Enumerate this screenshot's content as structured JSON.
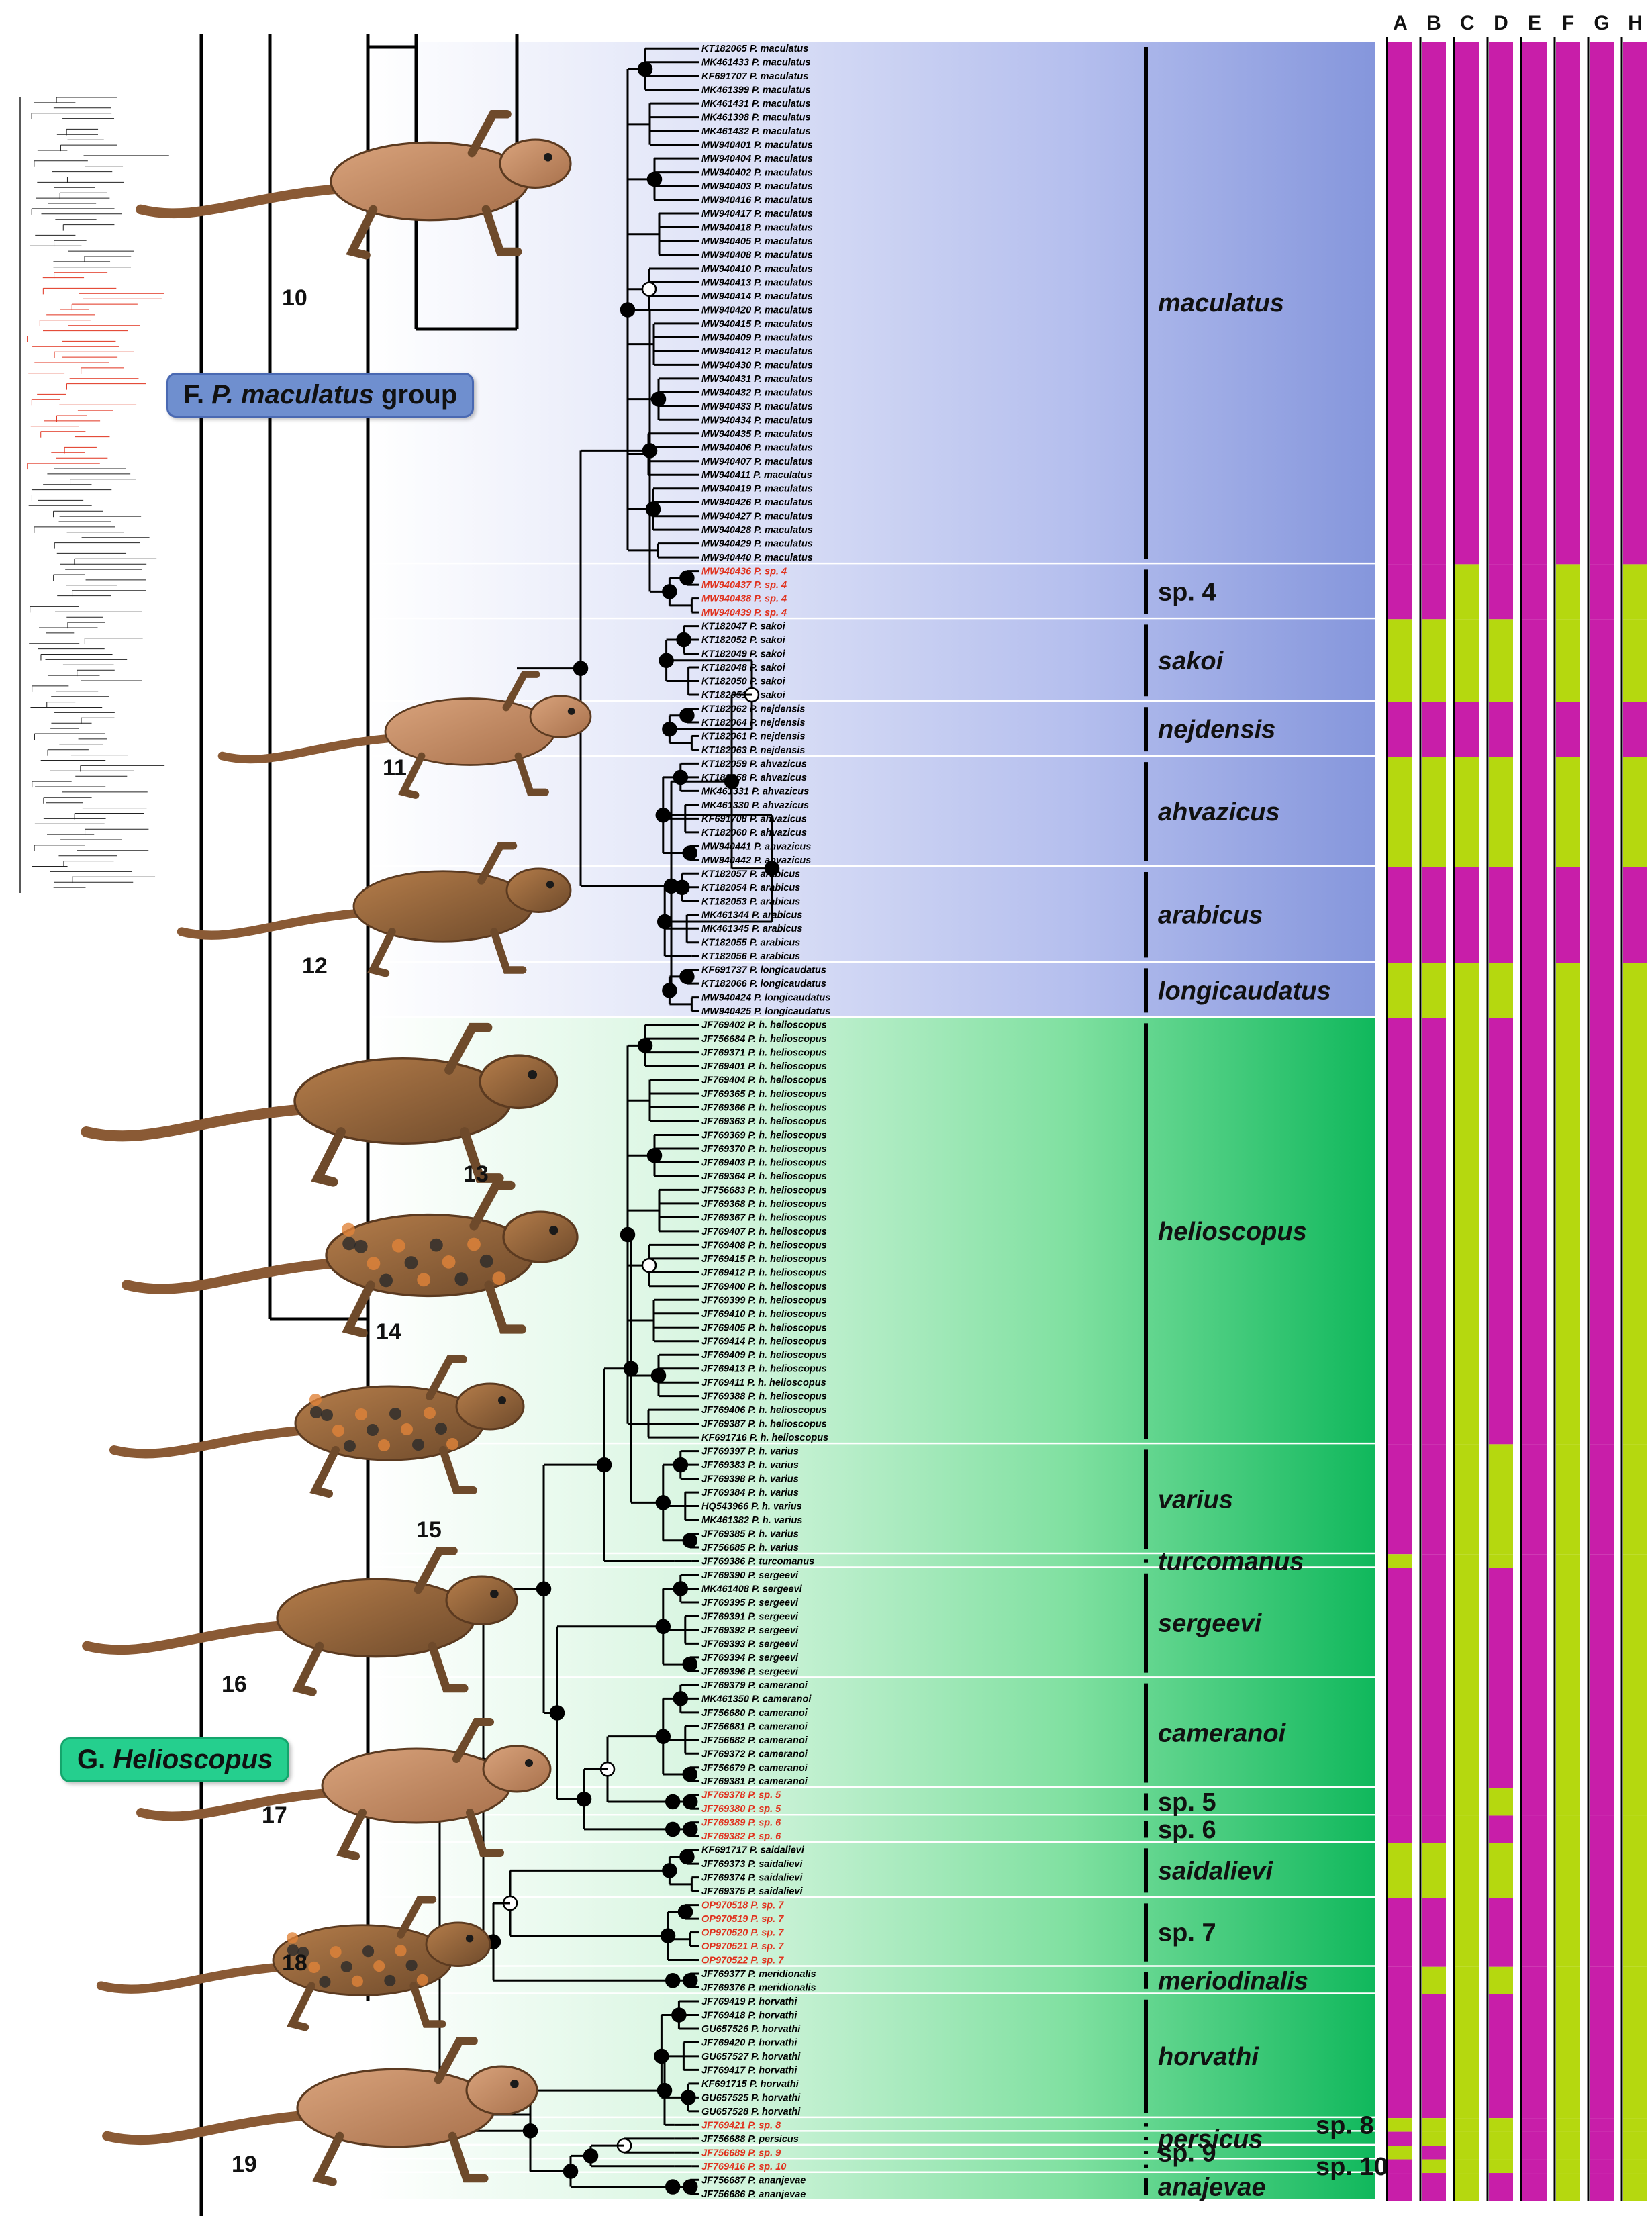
{
  "groups": {
    "F": {
      "prefix": "F.",
      "genus": "P. maculatus",
      "suffix": "group"
    },
    "G": {
      "prefix": "G.",
      "genus": "Helioscopus"
    }
  },
  "columns": [
    "A",
    "B",
    "C",
    "D",
    "E",
    "F",
    "G",
    "H"
  ],
  "photo_labels": [
    "10",
    "11",
    "12",
    "13",
    "14",
    "15",
    "16",
    "17",
    "18",
    "19"
  ],
  "colors": {
    "magenta": "#c81ea9",
    "lime": "#b5d80f",
    "blue_band": "#8596dc",
    "green_band": "#10b85c",
    "red_tip": "#e0321e"
  },
  "clades": [
    {
      "name": "maculatus",
      "type": "latin",
      "band": "blue",
      "states": "MMMMMMMM",
      "tips": [
        [
          "KT182065",
          "P. maculatus"
        ],
        [
          "MK461433",
          "P. maculatus"
        ],
        [
          "KF691707",
          "P. maculatus"
        ],
        [
          "MK461399",
          "P. maculatus"
        ],
        [
          "MK461431",
          "P. maculatus"
        ],
        [
          "MK461398",
          "P. maculatus"
        ],
        [
          "MK461432",
          "P. maculatus"
        ],
        [
          "MW940401",
          "P. maculatus"
        ],
        [
          "MW940404",
          "P. maculatus"
        ],
        [
          "MW940402",
          "P. maculatus"
        ],
        [
          "MW940403",
          "P. maculatus"
        ],
        [
          "MW940416",
          "P. maculatus"
        ],
        [
          "MW940417",
          "P. maculatus"
        ],
        [
          "MW940418",
          "P. maculatus"
        ],
        [
          "MW940405",
          "P. maculatus"
        ],
        [
          "MW940408",
          "P. maculatus"
        ],
        [
          "MW940410",
          "P. maculatus"
        ],
        [
          "MW940413",
          "P. maculatus"
        ],
        [
          "MW940414",
          "P. maculatus"
        ],
        [
          "MW940420",
          "P. maculatus"
        ],
        [
          "MW940415",
          "P. maculatus"
        ],
        [
          "MW940409",
          "P. maculatus"
        ],
        [
          "MW940412",
          "P. maculatus"
        ],
        [
          "MW940430",
          "P. maculatus"
        ],
        [
          "MW940431",
          "P. maculatus"
        ],
        [
          "MW940432",
          "P. maculatus"
        ],
        [
          "MW940433",
          "P. maculatus"
        ],
        [
          "MW940434",
          "P. maculatus"
        ],
        [
          "MW940435",
          "P. maculatus"
        ],
        [
          "MW940406",
          "P. maculatus"
        ],
        [
          "MW940407",
          "P. maculatus"
        ],
        [
          "MW940411",
          "P. maculatus"
        ],
        [
          "MW940419",
          "P. maculatus"
        ],
        [
          "MW940426",
          "P. maculatus"
        ],
        [
          "MW940427",
          "P. maculatus"
        ],
        [
          "MW940428",
          "P. maculatus"
        ],
        [
          "MW940429",
          "P. maculatus"
        ],
        [
          "MW940440",
          "P. maculatus"
        ]
      ]
    },
    {
      "name": "sp. 4",
      "type": "sp",
      "band": "blue",
      "states": "MMLMMLML",
      "red": true,
      "tips": [
        [
          "MW940436",
          "P. sp. 4"
        ],
        [
          "MW940437",
          "P. sp. 4"
        ],
        [
          "MW940438",
          "P. sp. 4"
        ],
        [
          "MW940439",
          "P. sp. 4"
        ]
      ]
    },
    {
      "name": "sakoi",
      "type": "latin",
      "band": "blue",
      "states": "LLLLMLML",
      "tips": [
        [
          "KT182047",
          "P. sakoi"
        ],
        [
          "KT182052",
          "P. sakoi"
        ],
        [
          "KT182049",
          "P. sakoi"
        ],
        [
          "KT182048",
          "P. sakoi"
        ],
        [
          "KT182050",
          "P. sakoi"
        ],
        [
          "KT182051",
          "P. sakoi"
        ]
      ]
    },
    {
      "name": "nejdensis",
      "type": "latin",
      "band": "blue",
      "states": "MMMMMMMM",
      "tips": [
        [
          "KT182062",
          "P. nejdensis"
        ],
        [
          "KT182064",
          "P. nejdensis"
        ],
        [
          "KT182061",
          "P. nejdensis"
        ],
        [
          "KT182063",
          "P. nejdensis"
        ]
      ]
    },
    {
      "name": "ahvazicus",
      "type": "latin",
      "band": "blue",
      "states": "LLLLMLML",
      "tips": [
        [
          "KT182059",
          "P. ahvazicus"
        ],
        [
          "KT182058",
          "P. ahvazicus"
        ],
        [
          "MK461331",
          "P. ahvazicus"
        ],
        [
          "MK461330",
          "P. ahvazicus"
        ],
        [
          "KF691708",
          "P. ahvazicus"
        ],
        [
          "KT182060",
          "P. ahvazicus"
        ],
        [
          "MW940441",
          "P. ahvazicus"
        ],
        [
          "MW940442",
          "P. ahvazicus"
        ]
      ]
    },
    {
      "name": "arabicus",
      "type": "latin",
      "band": "blue",
      "states": "MMMMMMMM",
      "tips": [
        [
          "KT182057",
          "P. arabicus"
        ],
        [
          "KT182054",
          "P. arabicus"
        ],
        [
          "KT182053",
          "P. arabicus"
        ],
        [
          "MK461344",
          "P. arabicus"
        ],
        [
          "MK461345",
          "P. arabicus"
        ],
        [
          "KT182055",
          "P. arabicus"
        ],
        [
          "KT182056",
          "P. arabicus"
        ]
      ]
    },
    {
      "name": "longicaudatus",
      "type": "latin",
      "band": "blue",
      "states": "LLLLMLML",
      "tips": [
        [
          "KF691737",
          "P. longicaudatus"
        ],
        [
          "KT182066",
          "P. longicaudatus"
        ],
        [
          "MW940424",
          "P. longicaudatus"
        ],
        [
          "MW940425",
          "P. longicaudatus"
        ]
      ]
    },
    {
      "name": "helioscopus",
      "type": "latin",
      "band": "green",
      "states": "MMLMMLML",
      "tips": [
        [
          "JF769402",
          "P. h. helioscopus"
        ],
        [
          "JF756684",
          "P. h. helioscopus"
        ],
        [
          "JF769371",
          "P. h. helioscopus"
        ],
        [
          "JF769401",
          "P. h. helioscopus"
        ],
        [
          "JF769404",
          "P. h. helioscopus"
        ],
        [
          "JF769365",
          "P. h. helioscopus"
        ],
        [
          "JF769366",
          "P. h. helioscopus"
        ],
        [
          "JF769363",
          "P. h. helioscopus"
        ],
        [
          "JF769369",
          "P. h. helioscopus"
        ],
        [
          "JF769370",
          "P. h. helioscopus"
        ],
        [
          "JF769403",
          "P. h. helioscopus"
        ],
        [
          "JF769364",
          "P. h. helioscopus"
        ],
        [
          "JF756683",
          "P. h. helioscopus"
        ],
        [
          "JF769368",
          "P. h. helioscopus"
        ],
        [
          "JF769367",
          "P. h. helioscopus"
        ],
        [
          "JF769407",
          "P. h. helioscopus"
        ],
        [
          "JF769408",
          "P. h. helioscopus"
        ],
        [
          "JF769415",
          "P. h. helioscopus"
        ],
        [
          "JF769412",
          "P. h. helioscopus"
        ],
        [
          "JF769400",
          "P. h. helioscopus"
        ],
        [
          "JF769399",
          "P. h. helioscopus"
        ],
        [
          "JF769410",
          "P. h. helioscopus"
        ],
        [
          "JF769405",
          "P. h. helioscopus"
        ],
        [
          "JF769414",
          "P. h. helioscopus"
        ],
        [
          "JF769409",
          "P. h. helioscopus"
        ],
        [
          "JF769413",
          "P. h. helioscopus"
        ],
        [
          "JF769411",
          "P. h. helioscopus"
        ],
        [
          "JF769388",
          "P. h. helioscopus"
        ],
        [
          "JF769406",
          "P. h. helioscopus"
        ],
        [
          "JF769387",
          "P. h. helioscopus"
        ],
        [
          "KF691716",
          "P. h. helioscopus"
        ]
      ]
    },
    {
      "name": "varius",
      "type": "latin",
      "band": "green",
      "states": "MMLLMLML",
      "tips": [
        [
          "JF769397",
          "P. h. varius"
        ],
        [
          "JF769383",
          "P. h. varius"
        ],
        [
          "JF769398",
          "P. h. varius"
        ],
        [
          "JF769384",
          "P. h. varius"
        ],
        [
          "HQ543966",
          "P. h. varius"
        ],
        [
          "MK461382",
          "P. h. varius"
        ],
        [
          "JF769385",
          "P. h. varius"
        ],
        [
          "JF756685",
          "P. h. varius"
        ]
      ]
    },
    {
      "name": "turcomanus",
      "type": "latin",
      "band": "green",
      "states": "LMLLMLML",
      "tips": [
        [
          "JF769386",
          "P. turcomanus"
        ]
      ]
    },
    {
      "name": "sergeevi",
      "type": "latin",
      "band": "green",
      "states": "MMLMMLML",
      "tips": [
        [
          "JF769390",
          "P. sergeevi"
        ],
        [
          "MK461408",
          "P. sergeevi"
        ],
        [
          "JF769395",
          "P. sergeevi"
        ],
        [
          "JF769391",
          "P. sergeevi"
        ],
        [
          "JF769392",
          "P. sergeevi"
        ],
        [
          "JF769393",
          "P. sergeevi"
        ],
        [
          "JF769394",
          "P. sergeevi"
        ],
        [
          "JF769396",
          "P. sergeevi"
        ]
      ]
    },
    {
      "name": "cameranoi",
      "type": "latin",
      "band": "green",
      "states": "MMLMMLML",
      "tips": [
        [
          "JF769379",
          "P. cameranoi"
        ],
        [
          "MK461350",
          "P. cameranoi"
        ],
        [
          "JF756680",
          "P. cameranoi"
        ],
        [
          "JF756681",
          "P. cameranoi"
        ],
        [
          "JF756682",
          "P. cameranoi"
        ],
        [
          "JF769372",
          "P. cameranoi"
        ],
        [
          "JF756679",
          "P. cameranoi"
        ],
        [
          "JF769381",
          "P. cameranoi"
        ]
      ]
    },
    {
      "name": "sp. 5",
      "type": "sp",
      "band": "green",
      "states": "MMLLMLML",
      "red": true,
      "tips": [
        [
          "JF769378",
          "P. sp. 5"
        ],
        [
          "JF769380",
          "P. sp. 5"
        ]
      ]
    },
    {
      "name": "sp. 6",
      "type": "sp",
      "band": "green",
      "states": "MMLMMLML",
      "red": true,
      "tips": [
        [
          "JF769389",
          "P. sp. 6"
        ],
        [
          "JF769382",
          "P. sp. 6"
        ]
      ]
    },
    {
      "name": "saidalievi",
      "type": "latin",
      "band": "green",
      "states": "LLLLMLML",
      "tips": [
        [
          "KF691717",
          "P. saidalievi"
        ],
        [
          "JF769373",
          "P. saidalievi"
        ],
        [
          "JF769374",
          "P. saidalievi"
        ],
        [
          "JF769375",
          "P. saidalievi"
        ]
      ]
    },
    {
      "name": "sp. 7",
      "type": "sp",
      "band": "green",
      "states": "MMLMMLML",
      "red": true,
      "tips": [
        [
          "OP970518",
          "P. sp. 7"
        ],
        [
          "OP970519",
          "P. sp. 7"
        ],
        [
          "OP970520",
          "P. sp. 7"
        ],
        [
          "OP970521",
          "P. sp. 7"
        ],
        [
          "OP970522",
          "P. sp. 7"
        ]
      ]
    },
    {
      "name": "meriodinalis",
      "type": "latin",
      "band": "green",
      "states": "MLLLMLML",
      "tips": [
        [
          "JF769377",
          "P. meridionalis"
        ],
        [
          "JF769376",
          "P. meridionalis"
        ]
      ]
    },
    {
      "name": "horvathi",
      "type": "latin",
      "band": "green",
      "states": "MMLMMLML",
      "tips": [
        [
          "JF769419",
          "P. horvathi"
        ],
        [
          "JF769418",
          "P. horvathi"
        ],
        [
          "GU657526",
          "P. horvathi"
        ],
        [
          "JF769420",
          "P. horvathi"
        ],
        [
          "GU657527",
          "P. horvathi"
        ],
        [
          "JF769417",
          "P. horvathi"
        ],
        [
          "KF691715",
          "P. horvathi"
        ],
        [
          "GU657525",
          "P. horvathi"
        ],
        [
          "GU657528",
          "P. horvathi"
        ]
      ]
    },
    {
      "name": "sp. 8",
      "type": "sp",
      "band": "green",
      "states": "LLLLMLML",
      "red": true,
      "side": true,
      "tips": [
        [
          "JF769421",
          "P. sp. 8"
        ]
      ]
    },
    {
      "name": "persicus",
      "type": "latin",
      "band": "green",
      "states": "MLLLMLML",
      "tips": [
        [
          "JF756688",
          "P. persicus"
        ]
      ]
    },
    {
      "name": "sp. 9",
      "type": "sp",
      "band": "green",
      "states": "LMLLMLML",
      "red": true,
      "tips": [
        [
          "JF756689",
          "P. sp. 9"
        ]
      ]
    },
    {
      "name": "sp. 10",
      "type": "sp",
      "band": "green",
      "states": "MLLLMLML",
      "red": true,
      "side": true,
      "tips": [
        [
          "JF769416",
          "P. sp. 10"
        ]
      ]
    },
    {
      "name": "anajevae",
      "type": "latin",
      "band": "green",
      "states": "MMLMMLML",
      "tips": [
        [
          "JF756687",
          "P. ananjevae"
        ],
        [
          "JF756686",
          "P. ananjevae"
        ]
      ]
    }
  ]
}
